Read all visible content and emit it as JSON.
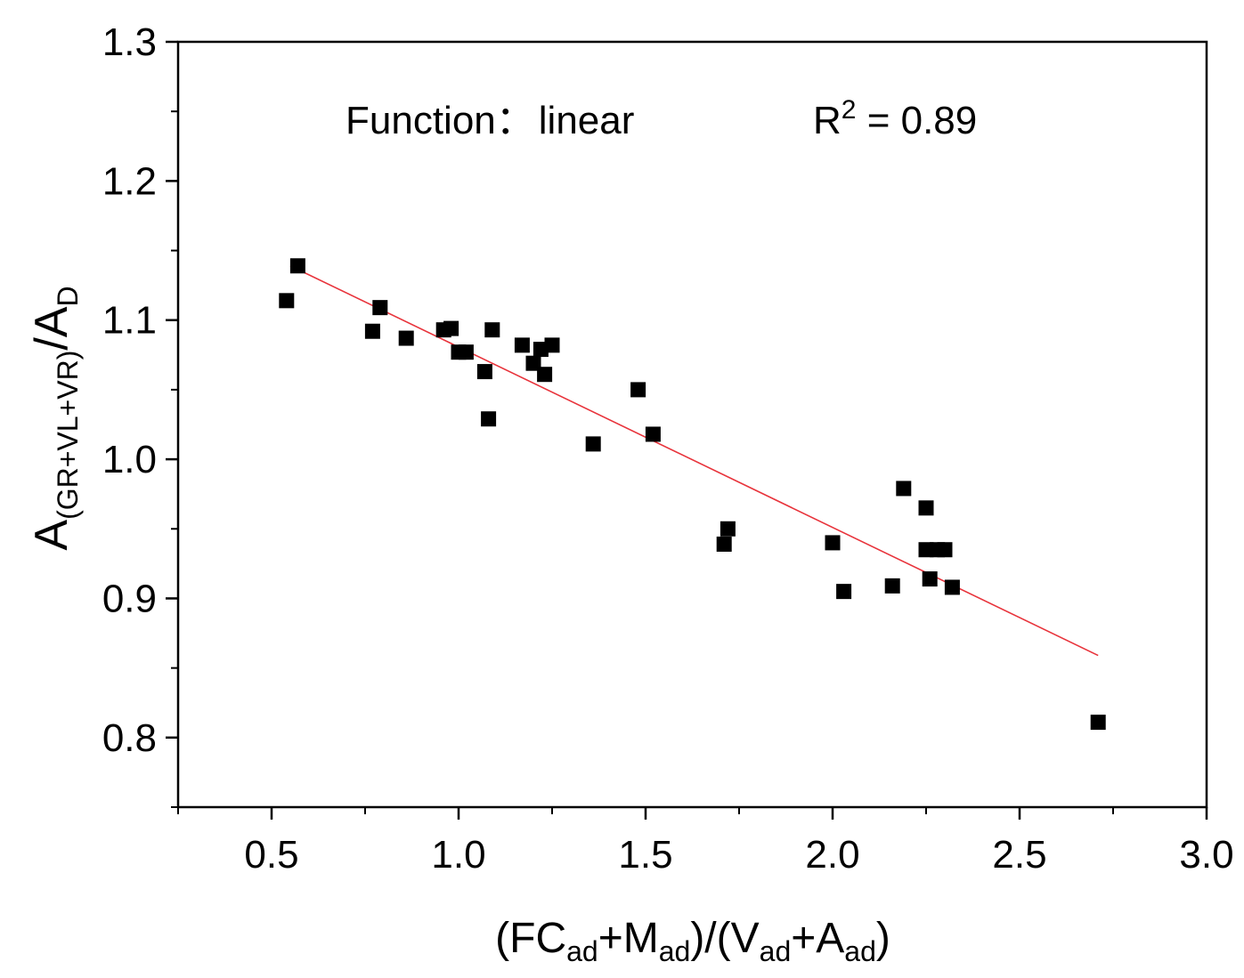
{
  "chart_data": {
    "type": "scatter",
    "title": "",
    "annotations": {
      "function_label": "Function",
      "function_sep": "：",
      "function_value": "linear",
      "r2_base": "R",
      "r2_sup": "2",
      "r2_rest": " = 0.89"
    },
    "xlabel": {
      "p1": "(FC",
      "s1": "ad",
      "p2": "+M",
      "s2": "ad",
      "p3": ")/(V",
      "s3": "ad",
      "p4": "+A",
      "s4": "ad",
      "p5": ")"
    },
    "ylabel": {
      "p1": "A",
      "s1": "(GR+VL+VR)",
      "p2": "/A",
      "s2": "D"
    },
    "xlim": [
      0.25,
      3.0
    ],
    "ylim": [
      0.75,
      1.3
    ],
    "xticks": [
      0.5,
      1.0,
      1.5,
      2.0,
      2.5,
      3.0
    ],
    "xtick_labels": [
      "0.5",
      "1.0",
      "1.5",
      "2.0",
      "2.5",
      "3.0"
    ],
    "yticks": [
      0.8,
      0.9,
      1.0,
      1.1,
      1.2,
      1.3
    ],
    "ytick_labels": [
      "0.8",
      "0.9",
      "1.0",
      "1.1",
      "1.2",
      "1.3"
    ],
    "grid": false,
    "series": [
      {
        "name": "data",
        "marker": "square",
        "color": "#000000",
        "points": [
          [
            0.54,
            1.114
          ],
          [
            0.57,
            1.139
          ],
          [
            0.77,
            1.092
          ],
          [
            0.79,
            1.109
          ],
          [
            0.86,
            1.087
          ],
          [
            0.96,
            1.093
          ],
          [
            0.98,
            1.094
          ],
          [
            1.0,
            1.077
          ],
          [
            1.02,
            1.077
          ],
          [
            1.07,
            1.063
          ],
          [
            1.08,
            1.029
          ],
          [
            1.09,
            1.093
          ],
          [
            1.17,
            1.082
          ],
          [
            1.2,
            1.069
          ],
          [
            1.22,
            1.079
          ],
          [
            1.23,
            1.061
          ],
          [
            1.25,
            1.082
          ],
          [
            1.36,
            1.011
          ],
          [
            1.48,
            1.05
          ],
          [
            1.52,
            1.018
          ],
          [
            1.71,
            0.939
          ],
          [
            1.72,
            0.95
          ],
          [
            2.0,
            0.94
          ],
          [
            2.03,
            0.905
          ],
          [
            2.16,
            0.909
          ],
          [
            2.19,
            0.979
          ],
          [
            2.25,
            0.965
          ],
          [
            2.25,
            0.935
          ],
          [
            2.26,
            0.914
          ],
          [
            2.28,
            0.935
          ],
          [
            2.3,
            0.935
          ],
          [
            2.32,
            0.908
          ],
          [
            2.71,
            0.811
          ]
        ]
      }
    ],
    "fit_line": {
      "name": "linear fit",
      "color": "#e8333b",
      "x": [
        0.55,
        2.71
      ],
      "y": [
        1.139,
        0.859
      ]
    }
  }
}
